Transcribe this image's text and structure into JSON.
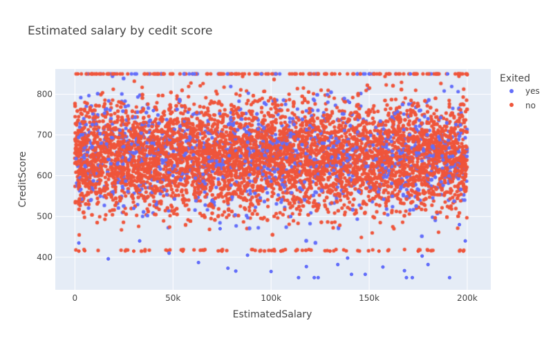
{
  "chart_data": {
    "type": "scatter",
    "title": "Estimated salary by cedit score",
    "xlabel": "EstimatedSalary",
    "ylabel": "CreditScore",
    "xlim": [
      -10000,
      212000
    ],
    "ylim": [
      320,
      862
    ],
    "x_ticks": [
      {
        "value": 0,
        "label": "0"
      },
      {
        "value": 50000,
        "label": "50k"
      },
      {
        "value": 100000,
        "label": "100k"
      },
      {
        "value": 150000,
        "label": "150k"
      },
      {
        "value": 200000,
        "label": "200k"
      }
    ],
    "y_ticks": [
      {
        "value": 400,
        "label": "400"
      },
      {
        "value": 500,
        "label": "500"
      },
      {
        "value": 600,
        "label": "600"
      },
      {
        "value": 700,
        "label": "700"
      },
      {
        "value": 800,
        "label": "800"
      }
    ],
    "grid": true,
    "legend": {
      "title": "Exited",
      "placement": "right"
    },
    "series": [
      {
        "name": "yes",
        "color": "#636efa"
      },
      {
        "name": "no",
        "color": "#ef553b"
      }
    ],
    "points": [
      [
        60000,
        850,
        1
      ],
      [
        95000,
        850,
        1
      ],
      [
        150000,
        850,
        1
      ],
      [
        171000,
        850,
        1
      ],
      [
        190000,
        850,
        1
      ],
      [
        3000,
        700,
        1
      ],
      [
        17000,
        640,
        1
      ],
      [
        50000,
        600,
        1
      ],
      [
        74000,
        470,
        1
      ],
      [
        88000,
        720,
        1
      ],
      [
        127000,
        680,
        1
      ],
      [
        145000,
        560,
        1
      ],
      [
        162000,
        650,
        1
      ],
      [
        196000,
        480,
        1
      ],
      [
        30000,
        520,
        1
      ],
      [
        110000,
        500,
        1
      ],
      [
        180000,
        740,
        1
      ],
      [
        40000,
        760,
        1
      ],
      [
        140000,
        780,
        1
      ],
      [
        70000,
        540,
        1
      ],
      [
        100000,
        365,
        1
      ],
      [
        114000,
        350,
        1
      ],
      [
        122000,
        350,
        1
      ],
      [
        124000,
        350,
        1
      ],
      [
        141000,
        358,
        1
      ],
      [
        148000,
        358,
        1
      ],
      [
        169000,
        350,
        1
      ],
      [
        172000,
        350,
        1
      ],
      [
        191000,
        350,
        1
      ],
      [
        63000,
        387,
        1
      ],
      [
        78000,
        373,
        1
      ],
      [
        82000,
        366,
        1
      ],
      [
        134000,
        382,
        1
      ],
      [
        139000,
        398,
        1
      ],
      [
        157000,
        376,
        1
      ],
      [
        168000,
        367,
        1
      ],
      [
        177000,
        403,
        1
      ],
      [
        180000,
        382,
        1
      ],
      [
        199000,
        440,
        1
      ],
      [
        17000,
        396,
        1
      ],
      [
        48000,
        410,
        1
      ],
      [
        118000,
        377,
        1
      ],
      [
        2000,
        435,
        1
      ],
      [
        33000,
        440,
        1
      ],
      [
        88000,
        405,
        1
      ],
      [
        1500,
        850,
        0
      ],
      [
        20000,
        850,
        0
      ],
      [
        45000,
        850,
        0
      ],
      [
        80000,
        850,
        0
      ],
      [
        115000,
        850,
        0
      ],
      [
        135000,
        850,
        0
      ],
      [
        160000,
        850,
        0
      ],
      [
        185000,
        850,
        0
      ],
      [
        200000,
        848,
        0
      ],
      [
        2000,
        415,
        0
      ],
      [
        5000,
        416,
        0
      ],
      [
        30000,
        415,
        0
      ],
      [
        55000,
        415,
        0
      ],
      [
        75000,
        415,
        0
      ],
      [
        105000,
        415,
        0
      ],
      [
        130000,
        415,
        0
      ],
      [
        155000,
        415,
        0
      ],
      [
        175000,
        415,
        0
      ],
      [
        198000,
        415,
        0
      ],
      [
        12000,
        650,
        0
      ],
      [
        45000,
        690,
        0
      ],
      [
        85000,
        620,
        0
      ],
      [
        125000,
        710,
        0
      ],
      [
        165000,
        590,
        0
      ],
      [
        195000,
        680,
        0
      ]
    ]
  }
}
